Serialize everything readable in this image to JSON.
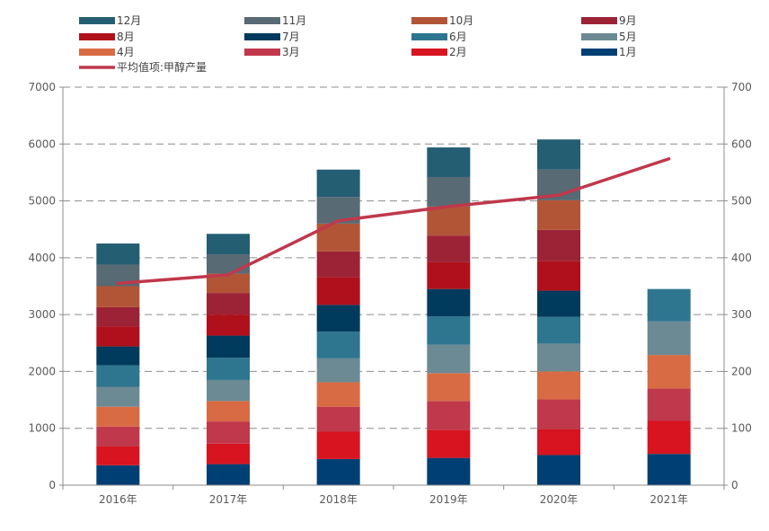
{
  "chart_data": {
    "type": "bar",
    "stacked": true,
    "categories": [
      "2016年",
      "2017年",
      "2018年",
      "2019年",
      "2020年",
      "2021年"
    ],
    "left_ylim": [
      0,
      7000
    ],
    "left_yticks": [
      "0",
      "1000",
      "2000",
      "3000",
      "4000",
      "5000",
      "6000",
      "7000"
    ],
    "right_ylim": [
      0,
      700
    ],
    "right_yticks": [
      "0",
      "100",
      "200",
      "300",
      "400",
      "500",
      "600",
      "700"
    ],
    "grid": "horizontal-dashed",
    "legend_position": "top",
    "series": [
      {
        "name": "1月",
        "color": "#003F73",
        "values": [
          350,
          370,
          460,
          480,
          530,
          550
        ]
      },
      {
        "name": "2月",
        "color": "#D7141F",
        "values": [
          330,
          360,
          480,
          490,
          450,
          580
        ]
      },
      {
        "name": "3月",
        "color": "#C0384B",
        "values": [
          350,
          390,
          440,
          510,
          530,
          570
        ]
      },
      {
        "name": "4月",
        "color": "#D86B43",
        "values": [
          350,
          360,
          430,
          490,
          490,
          590
        ]
      },
      {
        "name": "5月",
        "color": "#6C8A93",
        "values": [
          350,
          370,
          420,
          500,
          490,
          590
        ]
      },
      {
        "name": "6月",
        "color": "#2E7590",
        "values": [
          380,
          390,
          470,
          500,
          470,
          570
        ]
      },
      {
        "name": "7月",
        "color": "#003A5C",
        "values": [
          330,
          390,
          470,
          480,
          460,
          0
        ]
      },
      {
        "name": "8月",
        "color": "#B0101B",
        "values": [
          350,
          370,
          490,
          470,
          520,
          0
        ]
      },
      {
        "name": "9月",
        "color": "#9B2335",
        "values": [
          340,
          380,
          450,
          470,
          550,
          0
        ]
      },
      {
        "name": "10月",
        "color": "#B25536",
        "values": [
          370,
          340,
          490,
          510,
          520,
          0
        ]
      },
      {
        "name": "11月",
        "color": "#586A73",
        "values": [
          380,
          340,
          470,
          520,
          540,
          0
        ]
      },
      {
        "name": "12月",
        "color": "#245E73",
        "values": [
          370,
          360,
          480,
          520,
          530,
          0
        ]
      }
    ],
    "line": {
      "name": "平均值项:甲醇产量",
      "color": "#C0384B",
      "axis": "right",
      "values": [
        355,
        370,
        465,
        490,
        510,
        574
      ]
    }
  }
}
